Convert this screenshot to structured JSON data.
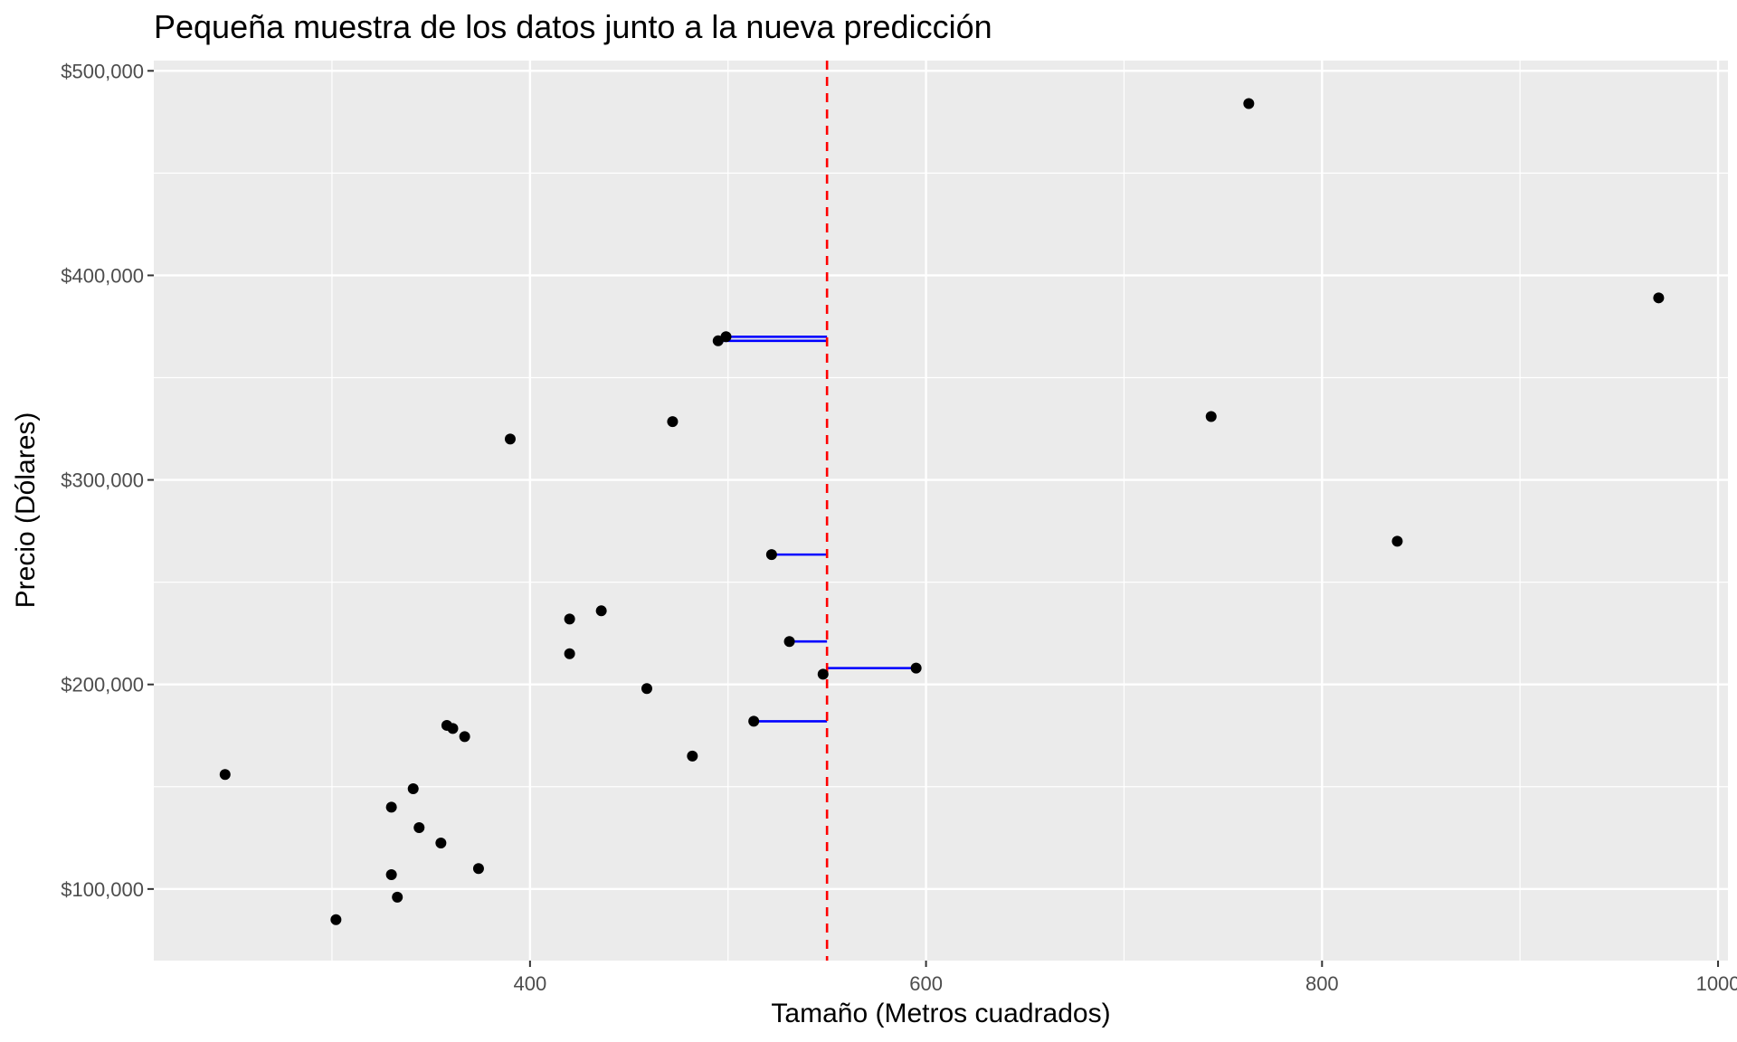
{
  "chart_data": {
    "type": "scatter",
    "title": "Pequeña muestra de los datos junto a la nueva predicción",
    "xlabel": "Tamaño (Metros cuadrados)",
    "ylabel": "Precio (Dólares)",
    "xlim": [
      210,
      1005
    ],
    "ylim": [
      65000,
      505000
    ],
    "x_ticks": [
      400,
      600,
      800,
      1000
    ],
    "x_tick_labels": [
      "400",
      "600",
      "800",
      "1000"
    ],
    "y_ticks": [
      100000,
      200000,
      300000,
      400000,
      500000
    ],
    "y_tick_labels": [
      "$100,000",
      "$200,000",
      "$300,000",
      "$400,000",
      "$500,000"
    ],
    "grid": true,
    "panel_background": "#ebebeb",
    "grid_color": "#ffffff",
    "point_color": "#000000",
    "points": [
      {
        "x": 246,
        "y": 156000
      },
      {
        "x": 302,
        "y": 85000
      },
      {
        "x": 330,
        "y": 107000
      },
      {
        "x": 330,
        "y": 140000
      },
      {
        "x": 333,
        "y": 96000
      },
      {
        "x": 341,
        "y": 149000
      },
      {
        "x": 344,
        "y": 130000
      },
      {
        "x": 355,
        "y": 122500
      },
      {
        "x": 358,
        "y": 180000
      },
      {
        "x": 361,
        "y": 178500
      },
      {
        "x": 367,
        "y": 174500
      },
      {
        "x": 374,
        "y": 110000
      },
      {
        "x": 390,
        "y": 320000
      },
      {
        "x": 420,
        "y": 232000
      },
      {
        "x": 420,
        "y": 215000
      },
      {
        "x": 436,
        "y": 236000
      },
      {
        "x": 459,
        "y": 198000
      },
      {
        "x": 472,
        "y": 328500
      },
      {
        "x": 482,
        "y": 165000
      },
      {
        "x": 495,
        "y": 368000
      },
      {
        "x": 499,
        "y": 370000
      },
      {
        "x": 513,
        "y": 182000
      },
      {
        "x": 522,
        "y": 263500
      },
      {
        "x": 531,
        "y": 221000
      },
      {
        "x": 548,
        "y": 205000
      },
      {
        "x": 595,
        "y": 208000
      },
      {
        "x": 744,
        "y": 331000
      },
      {
        "x": 763,
        "y": 484000
      },
      {
        "x": 838,
        "y": 270000
      },
      {
        "x": 970,
        "y": 389000
      }
    ],
    "prediction_x": 550,
    "prediction_line_color": "#ff0000",
    "neighbor_segment_color": "#0000ff",
    "neighbors": [
      {
        "x": 499,
        "y": 370000
      },
      {
        "x": 495,
        "y": 368000
      },
      {
        "x": 522,
        "y": 263500
      },
      {
        "x": 531,
        "y": 221000
      },
      {
        "x": 595,
        "y": 208000
      },
      {
        "x": 513,
        "y": 182000
      }
    ]
  }
}
